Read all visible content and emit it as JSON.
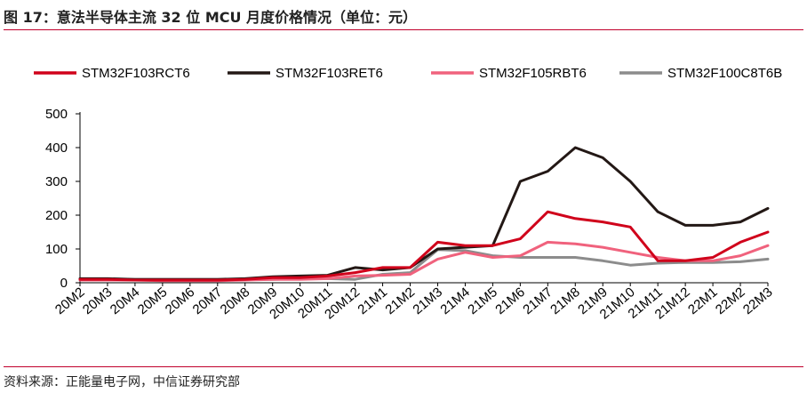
{
  "figure": {
    "title": "图 17：意法半导体主流 32 位 MCU 月度价格情况（单位：元）",
    "source": "资料来源：正能量电子网，中信证券研究部"
  },
  "chart_data": {
    "type": "line",
    "title": "",
    "xlabel": "",
    "ylabel": "",
    "ylim": [
      0,
      500
    ],
    "yticks": [
      0,
      100,
      200,
      300,
      400,
      500
    ],
    "grid": false,
    "legend_position": "top",
    "categories": [
      "20M2",
      "20M3",
      "20M4",
      "20M5",
      "20M6",
      "20M7",
      "20M8",
      "20M9",
      "20M10",
      "20M11",
      "20M12",
      "21M1",
      "21M2",
      "21M3",
      "21M4",
      "21M5",
      "21M6",
      "21M7",
      "21M8",
      "21M9",
      "21M10",
      "21M11",
      "21M12",
      "22M1",
      "22M2",
      "22M3"
    ],
    "series": [
      {
        "name": "STM32F103RCT6",
        "color": "#d0021b",
        "values": [
          10,
          10,
          8,
          8,
          8,
          8,
          10,
          15,
          15,
          20,
          30,
          45,
          45,
          120,
          110,
          110,
          130,
          210,
          190,
          180,
          165,
          65,
          65,
          75,
          120,
          150
        ]
      },
      {
        "name": "STM32F103RET6",
        "color": "#231815",
        "values": [
          12,
          12,
          10,
          10,
          10,
          10,
          12,
          18,
          20,
          22,
          45,
          38,
          45,
          100,
          105,
          110,
          300,
          330,
          400,
          370,
          300,
          210,
          170,
          170,
          180,
          220
        ]
      },
      {
        "name": "STM32F105RBT6",
        "color": "#f0627d",
        "values": [
          8,
          8,
          8,
          6,
          6,
          6,
          8,
          10,
          10,
          12,
          20,
          22,
          25,
          70,
          90,
          75,
          80,
          120,
          115,
          105,
          90,
          75,
          65,
          65,
          80,
          110
        ]
      },
      {
        "name": "STM32F100C8T6B",
        "color": "#8c8c8c",
        "values": [
          10,
          10,
          10,
          10,
          10,
          10,
          10,
          10,
          12,
          12,
          10,
          25,
          30,
          98,
          95,
          80,
          75,
          75,
          75,
          65,
          52,
          58,
          60,
          60,
          62,
          70
        ]
      }
    ]
  }
}
